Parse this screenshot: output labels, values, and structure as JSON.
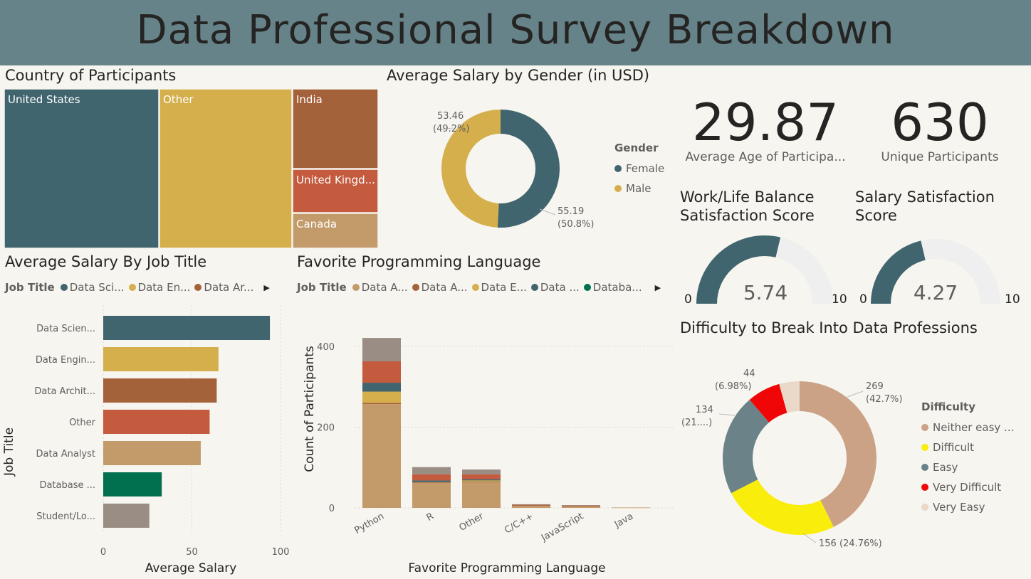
{
  "dashboard": {
    "title": "Data Professional Survey Breakdown"
  },
  "colors": {
    "banner": "#668389",
    "teal": "#41656e",
    "gold": "#d4af4c",
    "brown": "#a4623a",
    "rust": "#c45a3e",
    "tan": "#c39b6b",
    "green": "#00704f",
    "gray": "#9a8e84",
    "beige": "#cca287",
    "yellow": "#f9ed0b",
    "slate": "#6a8288",
    "red": "#f00606",
    "cream": "#ead8c8",
    "gauge_bg": "#efefef"
  },
  "country_treemap": {
    "title": "Country of Participants",
    "items": [
      {
        "label": "United States",
        "color": "#41656e"
      },
      {
        "label": "Other",
        "color": "#d4af4c"
      },
      {
        "label": "India",
        "color": "#a4623a"
      },
      {
        "label": "United Kingd...",
        "color": "#c45a3e"
      },
      {
        "label": "Canada",
        "color": "#c39b6b"
      }
    ]
  },
  "gender_donut": {
    "title": "Average Salary by Gender (in USD)",
    "legend_title": "Gender",
    "labels": [
      {
        "value": "53.46",
        "pct": "(49.2%)"
      },
      {
        "value": "55.19",
        "pct": "(50.8%)"
      }
    ],
    "legend": [
      "Female",
      "Male"
    ]
  },
  "kpis": {
    "avg_age": {
      "value": "29.87",
      "label": "Average Age of Participa..."
    },
    "unique": {
      "value": "630",
      "label": "Unique Participants"
    }
  },
  "gauges": {
    "worklife": {
      "title_line1": "Work/Life Balance",
      "title_line2": "Satisfaction Score",
      "value": "5.74",
      "min": "0",
      "max": "10"
    },
    "salary": {
      "title_line1": "Salary Satisfaction",
      "title_line2": "Score",
      "value": "4.27",
      "min": "0",
      "max": "10"
    }
  },
  "job_salary": {
    "title": "Average Salary By Job Title",
    "legend_title": "Job Title",
    "legend": [
      {
        "label": "Data Sci...",
        "color": "#41656e"
      },
      {
        "label": "Data En...",
        "color": "#d4af4c"
      },
      {
        "label": "Data Ar...",
        "color": "#a4623a"
      }
    ],
    "xlabel": "Average Salary",
    "ylabel": "Job Title",
    "ticks": [
      "0",
      "50",
      "100"
    ]
  },
  "prog_lang": {
    "title": "Favorite Programming Language",
    "legend_title": "Job Title",
    "legend": [
      {
        "label": "Data A...",
        "color": "#c39b6b"
      },
      {
        "label": "Data A...",
        "color": "#a4623a"
      },
      {
        "label": "Data E...",
        "color": "#d4af4c"
      },
      {
        "label": "Data ...",
        "color": "#41656e"
      },
      {
        "label": "Databa...",
        "color": "#00704f"
      }
    ],
    "xlabel": "Favorite Programming Language",
    "ylabel": "Count of Participants",
    "ticks": [
      "0",
      "200",
      "400"
    ]
  },
  "difficulty": {
    "title": "Difficulty to Break Into Data Professions",
    "legend_title": "Difficulty",
    "legend": [
      {
        "label": "Neither easy ...",
        "color": "#cca287"
      },
      {
        "label": "Difficult",
        "color": "#f9ed0b"
      },
      {
        "label": "Easy",
        "color": "#6a8288"
      },
      {
        "label": "Very Difficult",
        "color": "#f00606"
      },
      {
        "label": "Very Easy",
        "color": "#ead8c8"
      }
    ],
    "labels": {
      "neither": {
        "value": "269",
        "pct": "(42.7%)"
      },
      "difficult": {
        "value": "156 (24.76%)"
      },
      "easy": {
        "value": "134",
        "pct": "(21....)"
      },
      "very_difficult": {
        "value": "44",
        "pct": "(6.98%)"
      }
    }
  },
  "chart_data": [
    {
      "type": "treemap",
      "title": "Country of Participants",
      "categories": [
        "United States",
        "Other",
        "India",
        "United Kingd...",
        "Canada"
      ],
      "values": [
        261,
        254,
        71,
        36,
        29
      ]
    },
    {
      "type": "pie",
      "title": "Average Salary by Gender (in USD)",
      "categories": [
        "Female",
        "Male"
      ],
      "values": [
        55.19,
        53.46
      ],
      "percent": [
        50.8,
        49.2
      ],
      "donut": true,
      "legend": "right"
    },
    {
      "type": "bar",
      "orientation": "horizontal",
      "title": "Average Salary By Job Title",
      "categories": [
        "Data Scien...",
        "Data Engin...",
        "Data Archit...",
        "Other",
        "Data Analyst",
        "Database ...",
        "Student/Lo..."
      ],
      "values": [
        94,
        65,
        64,
        60,
        55,
        33,
        26
      ],
      "colors": [
        "#41656e",
        "#d4af4c",
        "#a4623a",
        "#c45a3e",
        "#c39b6b",
        "#00704f",
        "#9a8e84"
      ],
      "xlabel": "Average Salary",
      "ylabel": "Job Title",
      "xlim": [
        0,
        100
      ]
    },
    {
      "type": "bar",
      "stacked": true,
      "title": "Favorite Programming Language",
      "categories": [
        "Python",
        "R",
        "Other",
        "C/C++",
        "JavaScript",
        "Java"
      ],
      "series": [
        {
          "name": "Data A...",
          "color": "#c39b6b",
          "values": [
            257,
            63,
            63,
            5,
            4,
            1
          ]
        },
        {
          "name": "Data A...",
          "color": "#a4623a",
          "values": [
            3,
            1,
            2,
            2,
            1,
            0
          ]
        },
        {
          "name": "Data E...",
          "color": "#d4af4c",
          "values": [
            28,
            0,
            3,
            0,
            0,
            0
          ]
        },
        {
          "name": "Data ...",
          "color": "#41656e",
          "values": [
            22,
            4,
            3,
            0,
            0,
            0
          ]
        },
        {
          "name": "Databa...",
          "color": "#00704f",
          "values": [
            0,
            0,
            0,
            0,
            0,
            0
          ]
        },
        {
          "color": "#c45a3e",
          "values": [
            53,
            15,
            12,
            1,
            1,
            0
          ]
        },
        {
          "color": "#9a8e84",
          "values": [
            58,
            18,
            12,
            1,
            1,
            0
          ]
        }
      ],
      "xlabel": "Favorite Programming Language",
      "ylabel": "Count of Participants",
      "ylim": [
        0,
        420
      ],
      "grid": true
    },
    {
      "type": "pie",
      "title": "Difficulty to Break Into Data Professions",
      "categories": [
        "Neither easy ...",
        "Difficult",
        "Easy",
        "Very Difficult",
        "Very Easy"
      ],
      "values": [
        269,
        156,
        134,
        44,
        27
      ],
      "donut": true,
      "legend": "right"
    }
  ]
}
